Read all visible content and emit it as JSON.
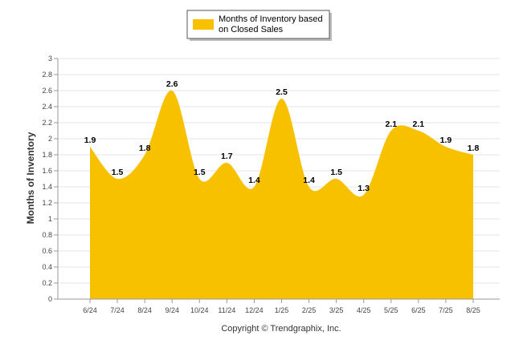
{
  "chart_data": {
    "type": "area",
    "ylabel": "Months of Inventory",
    "xlabel": "",
    "categories": [
      "6/24",
      "7/24",
      "8/24",
      "9/24",
      "10/24",
      "11/24",
      "12/24",
      "1/25",
      "2/25",
      "3/25",
      "4/25",
      "5/25",
      "6/25",
      "7/25",
      "8/25"
    ],
    "series": [
      {
        "name": "Months of Inventory based on Closed Sales",
        "values": [
          1.9,
          1.5,
          1.8,
          2.6,
          1.5,
          1.7,
          1.4,
          2.5,
          1.4,
          1.5,
          1.3,
          2.1,
          2.1,
          1.9,
          1.8
        ],
        "labels": [
          "1.9",
          "1.5",
          "1.8",
          "2.6",
          "1.5",
          "1.7",
          "1.4",
          "2.5",
          "1.4",
          "1.5",
          "1.3",
          "2.1",
          "2.1",
          "1.9",
          "1.8"
        ],
        "color": "#F7C100"
      }
    ],
    "ylim": [
      0,
      3
    ],
    "yticks": [
      "0",
      "0.2",
      "0.4",
      "0.6",
      "0.8",
      "1",
      "1.2",
      "1.4",
      "1.6",
      "1.8",
      "2",
      "2.2",
      "2.4",
      "2.6",
      "2.8",
      "3"
    ],
    "grid": true,
    "legend": "top-center"
  },
  "legend": {
    "line1": "Months of Inventory based",
    "line2": "on Closed Sales"
  },
  "footer": "Copyright © Trendgraphix, Inc."
}
